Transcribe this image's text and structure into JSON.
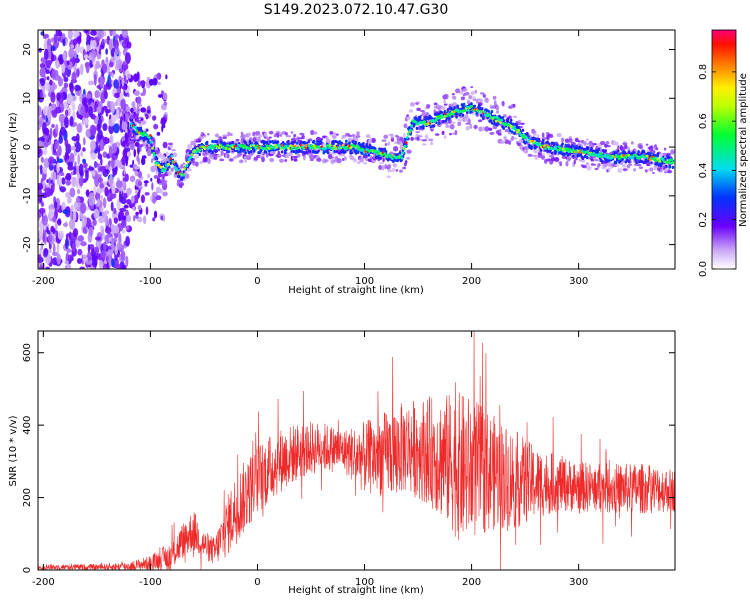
{
  "title": "S149.2023.072.10.47.G30",
  "chart_data": [
    {
      "type": "heatmap",
      "xlabel": "Height of straight line (km)",
      "ylabel": "Frequency (Hz)",
      "xlim": [
        -205,
        390
      ],
      "ylim": [
        -25,
        24
      ],
      "x_ticks": [
        -200,
        -100,
        0,
        100,
        200,
        300
      ],
      "y_ticks": [
        -20,
        -10,
        0,
        10,
        20
      ],
      "colorbar": {
        "label": "Normalized spectral amplitude",
        "range": [
          0.0,
          0.97
        ],
        "ticks": [
          "0.0",
          "0.2",
          "0.4",
          "0.6",
          "0.8"
        ],
        "tick_values": [
          0.0,
          0.2,
          0.4,
          0.6,
          0.8
        ]
      },
      "ridge": {
        "x": [
          -120,
          -110,
          -100,
          -95,
          -88,
          -80,
          -75,
          -70,
          -65,
          -60,
          -50,
          -30,
          0,
          30,
          60,
          90,
          110,
          125,
          135,
          140,
          145,
          160,
          180,
          200,
          220,
          240,
          255,
          270,
          300,
          330,
          360,
          385
        ],
        "frequency": [
          5,
          3,
          2,
          -3,
          -5,
          -2,
          -5,
          -6,
          -3,
          -1,
          0,
          0,
          0,
          0,
          0,
          0,
          -1,
          -2,
          -2,
          2,
          5,
          5,
          7,
          8,
          6,
          4,
          1,
          0,
          -1,
          -2,
          -2,
          -3
        ]
      }
    },
    {
      "type": "line",
      "xlabel": "Height of straight line (km)",
      "ylabel": "SNR (10 * v/v)",
      "xlim": [
        -205,
        390
      ],
      "ylim": [
        0,
        660
      ],
      "x_ticks": [
        -200,
        -100,
        0,
        100,
        200,
        300
      ],
      "y_ticks": [
        0,
        200,
        400,
        600
      ],
      "envelope": {
        "x": [
          -205,
          -150,
          -120,
          -100,
          -80,
          -70,
          -60,
          -50,
          -40,
          -30,
          -20,
          -10,
          0,
          20,
          40,
          60,
          80,
          100,
          120,
          140,
          160,
          180,
          190,
          200,
          220,
          240,
          260,
          280,
          300,
          330,
          360,
          390
        ],
        "mean": [
          8,
          8,
          10,
          20,
          40,
          80,
          110,
          70,
          50,
          110,
          170,
          210,
          250,
          300,
          330,
          340,
          330,
          310,
          320,
          340,
          330,
          300,
          280,
          280,
          270,
          250,
          240,
          240,
          230,
          225,
          225,
          220
        ],
        "spread": [
          8,
          8,
          12,
          20,
          40,
          50,
          60,
          40,
          40,
          80,
          100,
          100,
          100,
          90,
          80,
          70,
          60,
          100,
          120,
          130,
          150,
          190,
          210,
          200,
          160,
          140,
          100,
          80,
          70,
          70,
          70,
          60
        ]
      }
    }
  ],
  "colors": {
    "line": "#ee2a2a",
    "axis": "#000000"
  }
}
